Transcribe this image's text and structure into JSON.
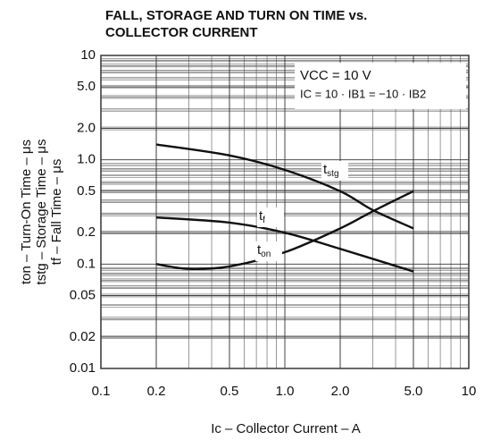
{
  "chart_data": {
    "type": "line",
    "title": [
      "FALL, STORAGE AND TURN ON TIME vs.",
      "COLLECTOR CURRENT"
    ],
    "x_label": "Ic – Collector Current – A",
    "y_label": [
      "ton – Turn-On Time – μs",
      "tstg – Storage Time – μs",
      "tf – Fall Time – μs"
    ],
    "annotations": [
      "VCC = 10 V",
      "IC = 10 · IB1 = −10 · IB2"
    ],
    "log_x": true,
    "log_y": true,
    "grid": true,
    "minor_grid": true,
    "xlim": [
      0.1,
      10
    ],
    "ylim": [
      0.01,
      10
    ],
    "xticks": [
      0.1,
      0.2,
      0.5,
      {
        "value": 1,
        "label": "1.0"
      },
      {
        "value": 2,
        "label": "2.0"
      },
      {
        "value": 5,
        "label": "5.0"
      },
      10
    ],
    "yticks": [
      0.01,
      0.02,
      0.05,
      0.1,
      0.2,
      0.5,
      {
        "value": 1,
        "label": "1.0"
      },
      {
        "value": 2,
        "label": "2.0"
      },
      {
        "value": 5,
        "label": "5.0"
      },
      10
    ],
    "series": [
      {
        "name": "tstg",
        "color": "#111111",
        "x": [
          0.2,
          0.5,
          1.0,
          2.0,
          3.0,
          5.0
        ],
        "values": [
          1.4,
          1.1,
          0.8,
          0.5,
          0.33,
          0.22
        ]
      },
      {
        "name": "tf",
        "color": "#111111",
        "x": [
          0.2,
          0.5,
          1.0,
          2.0,
          5.0
        ],
        "values": [
          0.28,
          0.25,
          0.2,
          0.14,
          0.085
        ]
      },
      {
        "name": "ton",
        "color": "#111111",
        "x": [
          0.2,
          0.3,
          0.5,
          1.0,
          2.0,
          3.0,
          5.0
        ],
        "values": [
          0.1,
          0.09,
          0.095,
          0.13,
          0.22,
          0.32,
          0.5
        ]
      }
    ]
  }
}
